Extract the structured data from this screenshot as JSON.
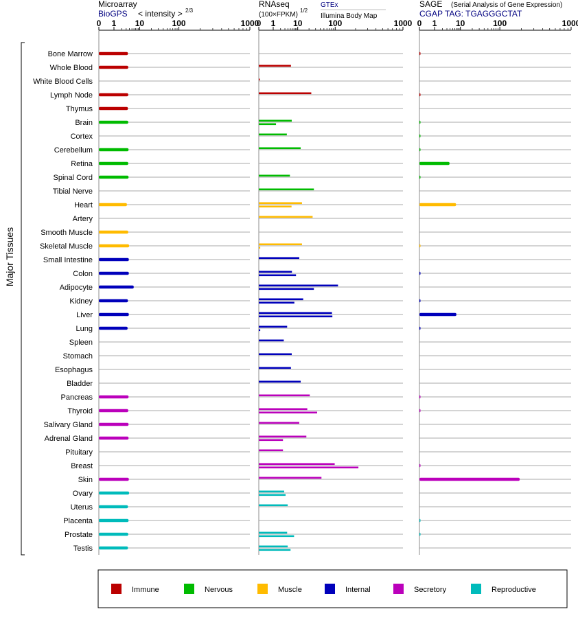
{
  "chart_data": {
    "type": "bar",
    "orientation": "horizontal",
    "group_axis_label": "Major Tissues",
    "tissues": [
      "Bone Marrow",
      "Whole Blood",
      "White Blood Cells",
      "Lymph Node",
      "Thymus",
      "Brain",
      "Cortex",
      "Cerebellum",
      "Retina",
      "Spinal Cord",
      "Tibial Nerve",
      "Heart",
      "Artery",
      "Smooth Muscle",
      "Skeletal Muscle",
      "Small Intestine",
      "Colon",
      "Adipocyte",
      "Kidney",
      "Liver",
      "Lung",
      "Spleen",
      "Stomach",
      "Esophagus",
      "Bladder",
      "Pancreas",
      "Thyroid",
      "Salivary Gland",
      "Adrenal Gland",
      "Pituitary",
      "Breast",
      "Skin",
      "Ovary",
      "Uterus",
      "Placenta",
      "Prostate",
      "Testis"
    ],
    "tissue_categories": [
      "Immune",
      "Immune",
      "Immune",
      "Immune",
      "Immune",
      "Nervous",
      "Nervous",
      "Nervous",
      "Nervous",
      "Nervous",
      "Nervous",
      "Muscle",
      "Muscle",
      "Muscle",
      "Muscle",
      "Internal",
      "Internal",
      "Internal",
      "Internal",
      "Internal",
      "Internal",
      "Internal",
      "Internal",
      "Internal",
      "Internal",
      "Secretory",
      "Secretory",
      "Secretory",
      "Secretory",
      "Secretory",
      "Secretory",
      "Secretory",
      "Reproductive",
      "Reproductive",
      "Reproductive",
      "Reproductive",
      "Reproductive"
    ],
    "legend": [
      {
        "name": "Immune",
        "color": "#bb0000"
      },
      {
        "name": "Nervous",
        "color": "#00bb00"
      },
      {
        "name": "Muscle",
        "color": "#ffbb00"
      },
      {
        "name": "Internal",
        "color": "#0000bb"
      },
      {
        "name": "Secretory",
        "color": "#bb00bb"
      },
      {
        "name": "Reproductive",
        "color": "#00bbbb"
      }
    ],
    "panels": [
      {
        "title": "Microarray",
        "subtitle": "BioGPS",
        "subtitle_note": "< intensity >",
        "exponent": "2/3",
        "ticks": [
          "0",
          "1",
          "10",
          "100",
          "1000"
        ],
        "tick_values": [
          0,
          1,
          10,
          100,
          1000
        ],
        "scale": "log",
        "values": [
          [
            3.5
          ],
          [
            3.6
          ],
          [],
          [
            3.6
          ],
          [
            3.5
          ],
          [
            3.6
          ],
          [],
          [
            3.7
          ],
          [
            3.6
          ],
          [
            3.7
          ],
          [],
          [
            3.2
          ],
          [],
          [
            3.6
          ],
          [
            3.9
          ],
          [
            3.8
          ],
          [
            3.8
          ],
          [
            5.9
          ],
          [
            3.5
          ],
          [
            3.8
          ],
          [
            3.4
          ],
          [],
          [],
          [],
          [],
          [
            3.7
          ],
          [
            3.6
          ],
          [
            3.7
          ],
          [
            3.7
          ],
          [],
          [],
          [
            3.8
          ],
          [
            3.9
          ],
          [
            3.5
          ],
          [
            3.7
          ],
          [
            3.6
          ],
          [
            3.5
          ]
        ]
      },
      {
        "title": "RNAseq",
        "subtitle_note": "(100×FPKM)",
        "exponent": "1/2",
        "source_1": "GTEx",
        "source_2": "Illumina Body Map",
        "ticks": [
          "0",
          "1",
          "10",
          "100",
          "1000"
        ],
        "tick_values": [
          0,
          1,
          10,
          100,
          1000
        ],
        "scale": "log",
        "values": [
          [],
          [
            5.3
          ],
          [
            0.05
          ],
          [
            23
          ],
          [],
          [
            5.7,
            1.3
          ],
          [
            3.6
          ],
          [
            12
          ],
          [],
          [
            4.8
          ],
          [
            27
          ],
          [
            13,
            5.6
          ],
          [
            25
          ],
          [],
          [
            13,
            0.1
          ],
          [
            11
          ],
          [
            5.8,
            8.5
          ],
          [
            110,
            27
          ],
          [
            14,
            7.3
          ],
          [
            82,
            84
          ],
          [
            3.7,
            0.1
          ],
          [
            2.7
          ],
          [
            5.7
          ],
          [
            5.3
          ],
          [
            12
          ],
          [
            21
          ],
          [
            18,
            33
          ],
          [
            11
          ],
          [
            17,
            2.5
          ],
          [
            2.5
          ],
          [
            97,
            220
          ],
          [
            43
          ],
          [
            2.8,
            3.2
          ],
          [
            3.9
          ],
          [],
          [
            3.7,
            7.1
          ],
          [
            3.9,
            5.1
          ]
        ]
      },
      {
        "title": "SAGE",
        "subtitle": "CGAP TAG: TGAGGGCTAT",
        "title_note": "(Serial Analysis of Gene Expression)",
        "ticks": [
          "0",
          "1",
          "10",
          "100",
          "1000"
        ],
        "tick_values": [
          0,
          1,
          10,
          100,
          1000
        ],
        "scale": "log",
        "values": [
          [
            0.05
          ],
          [],
          [],
          [
            0.05
          ],
          [],
          [
            0.03
          ],
          [
            0.03
          ],
          [
            0.03
          ],
          [
            3.8
          ],
          [
            0.03
          ],
          [],
          [
            6.8
          ],
          [],
          [],
          [
            0.03
          ],
          [],
          [
            0.05
          ],
          [],
          [
            0.05
          ],
          [
            7.0
          ],
          [
            0.03
          ],
          [],
          [],
          [],
          [],
          [
            0.05
          ],
          [
            0.05
          ],
          [],
          [],
          [],
          [
            0.05
          ],
          [
            190
          ],
          [],
          [],
          [
            0.03
          ],
          [
            0.03
          ],
          []
        ]
      }
    ]
  }
}
